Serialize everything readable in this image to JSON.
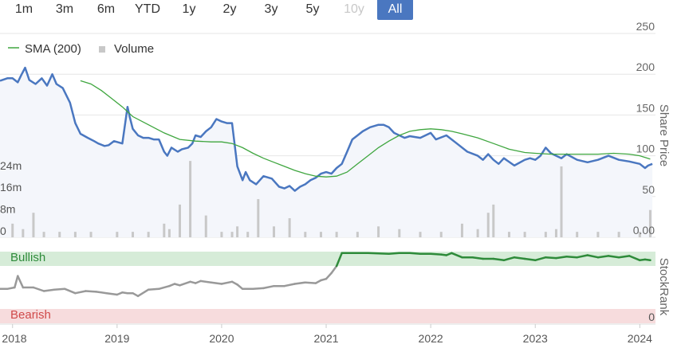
{
  "toolbar": {
    "ranges": [
      "1m",
      "3m",
      "6m",
      "YTD",
      "1y",
      "2y",
      "3y",
      "5y",
      "10y",
      "All"
    ],
    "active": "All",
    "disabled": [
      "10y"
    ]
  },
  "colors": {
    "price": "#4a77c0",
    "sma": "#3fa63f",
    "volume": "#c8c8c8",
    "rank_in_bullish": "#2e8b3a",
    "rank_neutral": "#999999",
    "bullish_band": "#d6ecd8",
    "bearish_band": "#f7dcdd",
    "bullish_text": "#2e8b3a",
    "bearish_text": "#d04a4a",
    "price_fill": "#f4f6fb"
  },
  "chart_data": [
    {
      "type": "line",
      "legend": {
        "placement": "top-left",
        "items": [
          "SMA (200)",
          "Volume"
        ]
      },
      "xlabel": "",
      "x_ticks": [
        "2018",
        "2019",
        "2020",
        "2021",
        "2022",
        "2023",
        "2024"
      ],
      "xlim": [
        2017.88,
        2024.15
      ],
      "ylabel": "Share Price",
      "ylim": [
        0,
        250
      ],
      "y_ticks": [
        "250",
        "200",
        "150",
        "100",
        "50",
        "0.00"
      ],
      "volume_axis": {
        "ticks": [
          "24m",
          "16m",
          "8m",
          "0"
        ],
        "ylim": [
          0,
          33
        ]
      },
      "grid": true,
      "series": [
        {
          "name": "",
          "kind": "price",
          "x": [
            2017.88,
            2017.95,
            2018.0,
            2018.05,
            2018.08,
            2018.12,
            2018.16,
            2018.22,
            2018.28,
            2018.33,
            2018.38,
            2018.42,
            2018.48,
            2018.55,
            2018.6,
            2018.65,
            2018.72,
            2018.78,
            2018.82,
            2018.88,
            2018.92,
            2018.97,
            2019.05,
            2019.1,
            2019.12,
            2019.15,
            2019.2,
            2019.25,
            2019.3,
            2019.35,
            2019.4,
            2019.45,
            2019.48,
            2019.52,
            2019.58,
            2019.62,
            2019.68,
            2019.72,
            2019.75,
            2019.8,
            2019.85,
            2019.9,
            2019.95,
            2020.0,
            2020.05,
            2020.1,
            2020.15,
            2020.2,
            2020.23,
            2020.27,
            2020.33,
            2020.4,
            2020.48,
            2020.55,
            2020.6,
            2020.65,
            2020.7,
            2020.75,
            2020.8,
            2020.85,
            2020.9,
            2020.95,
            2021.0,
            2021.05,
            2021.1,
            2021.15,
            2021.2,
            2021.25,
            2021.3,
            2021.35,
            2021.42,
            2021.5,
            2021.55,
            2021.6,
            2021.65,
            2021.7,
            2021.75,
            2021.8,
            2021.9,
            2022.0,
            2022.05,
            2022.15,
            2022.25,
            2022.35,
            2022.45,
            2022.5,
            2022.55,
            2022.6,
            2022.65,
            2022.7,
            2022.8,
            2022.9,
            2022.95,
            2023.0,
            2023.05,
            2023.1,
            2023.15,
            2023.25,
            2023.3,
            2023.4,
            2023.5,
            2023.6,
            2023.7,
            2023.8,
            2023.9,
            2024.0,
            2024.05,
            2024.08,
            2024.12
          ],
          "y": [
            192,
            195,
            195,
            190,
            198,
            208,
            193,
            188,
            195,
            186,
            200,
            188,
            183,
            165,
            140,
            127,
            122,
            118,
            115,
            112,
            113,
            118,
            115,
            160,
            148,
            133,
            125,
            122,
            122,
            120,
            120,
            105,
            100,
            110,
            105,
            108,
            110,
            115,
            125,
            123,
            130,
            135,
            145,
            142,
            140,
            140,
            87,
            70,
            80,
            70,
            65,
            75,
            72,
            62,
            60,
            63,
            57,
            62,
            65,
            70,
            73,
            78,
            80,
            78,
            85,
            90,
            105,
            120,
            125,
            130,
            135,
            138,
            138,
            135,
            128,
            125,
            122,
            124,
            122,
            128,
            120,
            125,
            115,
            105,
            100,
            95,
            102,
            95,
            90,
            97,
            88,
            95,
            97,
            95,
            100,
            110,
            103,
            97,
            102,
            95,
            92,
            95,
            100,
            95,
            93,
            90,
            85,
            88,
            90
          ]
        },
        {
          "name": "SMA (200)",
          "kind": "sma",
          "x": [
            2018.65,
            2018.75,
            2018.85,
            2018.95,
            2019.05,
            2019.15,
            2019.3,
            2019.45,
            2019.6,
            2019.75,
            2019.9,
            2020.0,
            2020.1,
            2020.2,
            2020.3,
            2020.4,
            2020.5,
            2020.6,
            2020.7,
            2020.8,
            2020.9,
            2021.0,
            2021.1,
            2021.2,
            2021.3,
            2021.4,
            2021.5,
            2021.6,
            2021.7,
            2021.8,
            2021.9,
            2022.0,
            2022.1,
            2022.2,
            2022.3,
            2022.45,
            2022.6,
            2022.75,
            2022.9,
            2023.0,
            2023.15,
            2023.3,
            2023.45,
            2023.6,
            2023.75,
            2023.9,
            2024.0,
            2024.1
          ],
          "y": [
            192,
            188,
            180,
            170,
            160,
            148,
            138,
            128,
            120,
            118,
            117,
            117,
            115,
            110,
            103,
            97,
            92,
            87,
            82,
            78,
            75,
            74,
            75,
            80,
            90,
            100,
            110,
            118,
            125,
            130,
            132,
            133,
            132,
            130,
            127,
            122,
            115,
            108,
            104,
            103,
            102,
            102,
            102,
            102,
            103,
            102,
            100,
            96
          ]
        },
        {
          "name": "Volume",
          "kind": "volume",
          "x": [
            2018.0,
            2018.1,
            2018.2,
            2018.3,
            2018.45,
            2018.6,
            2018.75,
            2019.0,
            2019.15,
            2019.3,
            2019.45,
            2019.5,
            2019.6,
            2019.7,
            2019.85,
            2020.0,
            2020.1,
            2020.15,
            2020.25,
            2020.35,
            2020.5,
            2020.65,
            2020.8,
            2020.95,
            2021.1,
            2021.3,
            2021.5,
            2021.7,
            2021.9,
            2022.1,
            2022.3,
            2022.45,
            2022.55,
            2022.6,
            2022.75,
            2022.9,
            2023.1,
            2023.2,
            2023.25,
            2023.4,
            2023.6,
            2023.8,
            2024.0,
            2024.1
          ],
          "y": [
            5,
            3,
            9,
            2,
            2,
            2,
            2,
            2,
            2,
            2,
            5,
            3,
            12,
            28,
            8,
            2,
            2,
            4,
            2,
            14,
            4,
            7,
            2,
            2,
            2,
            2,
            4,
            3,
            2,
            2,
            5,
            3,
            9,
            12,
            2,
            2,
            2,
            3,
            26,
            2,
            2,
            2,
            2,
            10
          ]
        }
      ]
    },
    {
      "type": "line",
      "ylabel": "StockRank",
      "ylim": [
        0,
        100
      ],
      "y_ticks": [
        "0"
      ],
      "bands": [
        {
          "label": "Bullish",
          "from": 80,
          "to": 100
        },
        {
          "label": "Bearish",
          "from": 0,
          "to": 20
        }
      ],
      "series": [
        {
          "name": "",
          "kind": "stockrank",
          "x": [
            2017.88,
            2017.95,
            2018.02,
            2018.05,
            2018.1,
            2018.2,
            2018.3,
            2018.4,
            2018.5,
            2018.6,
            2018.7,
            2018.8,
            2018.9,
            2019.0,
            2019.05,
            2019.1,
            2019.15,
            2019.2,
            2019.3,
            2019.4,
            2019.5,
            2019.55,
            2019.6,
            2019.7,
            2019.75,
            2019.8,
            2019.9,
            2020.0,
            2020.1,
            2020.15,
            2020.2,
            2020.3,
            2020.4,
            2020.5,
            2020.6,
            2020.7,
            2020.8,
            2020.9,
            2020.95,
            2021.0,
            2021.05,
            2021.1,
            2021.15,
            2021.2,
            2021.25,
            2021.4,
            2021.6,
            2021.7,
            2021.8,
            2021.9,
            2022.0,
            2022.1,
            2022.15,
            2022.2,
            2022.3,
            2022.4,
            2022.5,
            2022.6,
            2022.7,
            2022.8,
            2022.9,
            2023.0,
            2023.1,
            2023.2,
            2023.3,
            2023.4,
            2023.5,
            2023.6,
            2023.7,
            2023.8,
            2023.9,
            2024.0,
            2024.05,
            2024.1
          ],
          "y": [
            48,
            48,
            50,
            66,
            50,
            50,
            45,
            47,
            48,
            42,
            45,
            44,
            42,
            40,
            43,
            42,
            42,
            38,
            47,
            48,
            52,
            55,
            53,
            58,
            56,
            59,
            57,
            55,
            58,
            54,
            48,
            48,
            49,
            52,
            52,
            55,
            57,
            56,
            60,
            62,
            70,
            80,
            98,
            98,
            98,
            98,
            97,
            98,
            98,
            97,
            97,
            96,
            95,
            98,
            92,
            92,
            90,
            90,
            88,
            92,
            90,
            88,
            92,
            91,
            93,
            92,
            95,
            92,
            94,
            92,
            94,
            88,
            89,
            88
          ]
        }
      ]
    }
  ]
}
